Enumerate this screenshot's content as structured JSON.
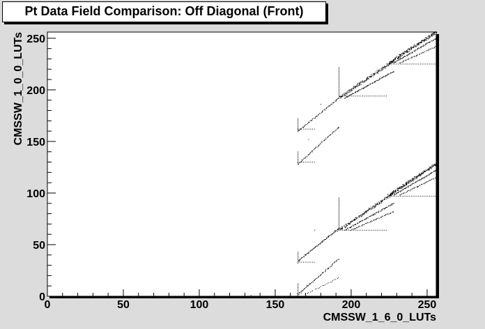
{
  "chart_data": {
    "type": "scatter",
    "title": "Pt Data Field Comparison: Off Diagonal (Front)",
    "xlabel": "CMSSW_1_6_0_LUTs",
    "ylabel": "CMSSW_1_0_0_LUTs",
    "xlim": [
      0,
      256
    ],
    "ylim": [
      0,
      256
    ],
    "x_ticks": [
      0,
      50,
      100,
      150,
      200,
      250
    ],
    "y_ticks": [
      0,
      50,
      100,
      150,
      200,
      250
    ],
    "grid": false,
    "point_color": "#000000",
    "segments": [
      {
        "x": [
          165,
          192
        ],
        "y": [
          2,
          36
        ],
        "density": 10
      },
      {
        "x": [
          165,
          172
        ],
        "y": [
          0,
          12
        ],
        "density": 4
      },
      {
        "x": [
          170,
          192
        ],
        "y": [
          2,
          18
        ],
        "density": 4
      },
      {
        "x": [
          165,
          192
        ],
        "y": [
          34,
          66
        ],
        "density": 14
      },
      {
        "x": [
          192,
          228
        ],
        "y": [
          64,
          100
        ],
        "density": 22
      },
      {
        "x": [
          196,
          228
        ],
        "y": [
          64,
          90
        ],
        "density": 12
      },
      {
        "x": [
          200,
          228
        ],
        "y": [
          64,
          82
        ],
        "density": 8
      },
      {
        "x": [
          225,
          256
        ],
        "y": [
          98,
          128
        ],
        "density": 30
      },
      {
        "x": [
          228,
          256
        ],
        "y": [
          98,
          122
        ],
        "density": 12
      },
      {
        "x": [
          232,
          256
        ],
        "y": [
          98,
          115
        ],
        "density": 8
      },
      {
        "x": [
          165,
          192
        ],
        "y": [
          128,
          164
        ],
        "density": 10
      },
      {
        "x": [
          165,
          192
        ],
        "y": [
          160,
          192
        ],
        "density": 10
      },
      {
        "x": [
          192,
          228
        ],
        "y": [
          192,
          228
        ],
        "density": 22
      },
      {
        "x": [
          196,
          228
        ],
        "y": [
          192,
          218
        ],
        "density": 12
      },
      {
        "x": [
          225,
          256
        ],
        "y": [
          226,
          256
        ],
        "density": 30
      },
      {
        "x": [
          228,
          256
        ],
        "y": [
          226,
          250
        ],
        "density": 12
      },
      {
        "x": [
          232,
          256
        ],
        "y": [
          226,
          242
        ],
        "density": 8
      }
    ],
    "horizontal_runs": [
      {
        "x": [
          165,
          176
        ],
        "y": 0
      },
      {
        "x": [
          165,
          176
        ],
        "y": 33
      },
      {
        "x": [
          165,
          176
        ],
        "y": 130
      },
      {
        "x": [
          165,
          176
        ],
        "y": 162
      },
      {
        "x": [
          192,
          224
        ],
        "y": 64
      },
      {
        "x": [
          224,
          256
        ],
        "y": 97
      },
      {
        "x": [
          192,
          224
        ],
        "y": 194
      },
      {
        "x": [
          224,
          256
        ],
        "y": 225
      }
    ],
    "vertical_runs": [
      {
        "x": 165,
        "y": [
          0,
          12
        ]
      },
      {
        "x": 165,
        "y": [
          32,
          44
        ]
      },
      {
        "x": 165,
        "y": [
          128,
          140
        ]
      },
      {
        "x": 165,
        "y": [
          160,
          172
        ]
      },
      {
        "x": 192,
        "y": [
          64,
          96
        ]
      },
      {
        "x": 192,
        "y": [
          194,
          222
        ]
      }
    ],
    "isolated_points": [
      {
        "x": 130,
        "y": 0
      },
      {
        "x": 134,
        "y": 1
      },
      {
        "x": 140,
        "y": 0
      },
      {
        "x": 172,
        "y": 152
      },
      {
        "x": 180,
        "y": 186
      },
      {
        "x": 176,
        "y": 64
      }
    ]
  }
}
